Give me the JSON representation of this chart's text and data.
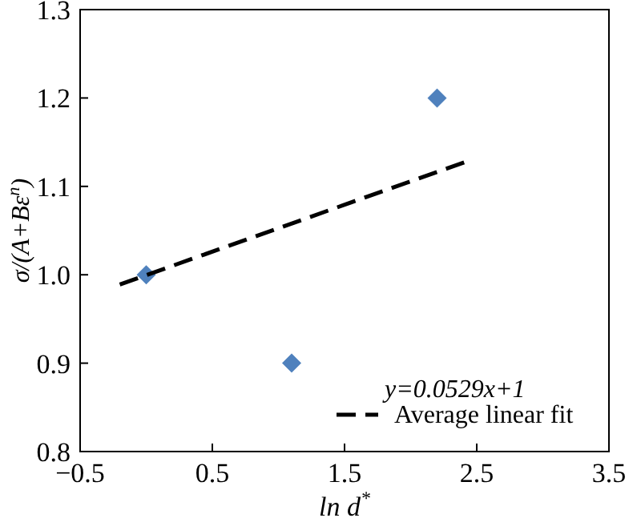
{
  "chart_data": {
    "type": "scatter",
    "xlabel": "ln d$^{*}$",
    "ylabel": "σ/(A+Bε$^{n}$)",
    "xlim": [
      -0.5,
      3.5
    ],
    "xticks": [
      {
        "value": -0.5,
        "label": "−0.5"
      },
      0.5,
      1.5,
      2.5,
      3.5
    ],
    "ylim": [
      0.8,
      1.3
    ],
    "yticks": [
      0.8,
      0.9,
      {
        "value": 1.0,
        "label": "1.0"
      },
      1.1,
      1.2,
      1.3
    ],
    "grid": false,
    "legend": "bottom right",
    "annotations": [
      "y=0.0529x+1"
    ],
    "series": [
      {
        "color": "#4f81bd",
        "marker": "diamond",
        "x": [
          0,
          1.1,
          2.2
        ],
        "values": [
          1.0,
          0.9,
          1.2
        ]
      },
      {
        "type": "line",
        "name": "Average linear fit",
        "color": "#000000",
        "line_style": "dashed",
        "x": [
          -0.2,
          2.42
        ],
        "values": [
          0.989,
          1.128
        ]
      }
    ]
  }
}
